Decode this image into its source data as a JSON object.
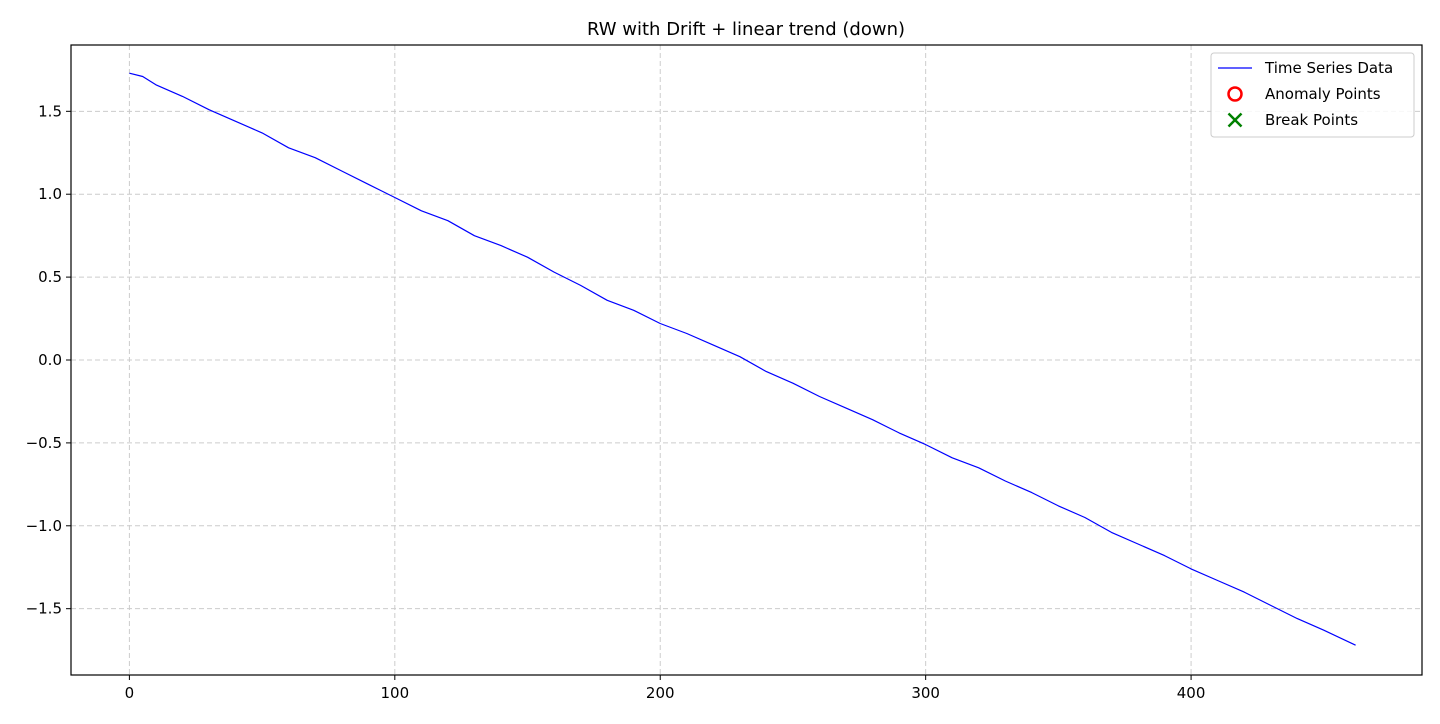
{
  "chart_data": {
    "type": "line",
    "title": "RW with Drift + linear trend (down)",
    "xlabel": "",
    "ylabel": "",
    "xlim": [
      -22,
      487
    ],
    "ylim": [
      -1.9,
      1.9
    ],
    "x_ticks": [
      0,
      100,
      200,
      300,
      400
    ],
    "y_ticks": [
      -1.5,
      -1.0,
      -0.5,
      0.0,
      0.5,
      1.0,
      1.5
    ],
    "x_tick_labels": [
      "0",
      "100",
      "200",
      "300",
      "400"
    ],
    "y_tick_labels": [
      "−1.5",
      "−1.0",
      "−0.5",
      "0.0",
      "0.5",
      "1.0",
      "1.5"
    ],
    "grid": true,
    "legend_position": "top-right",
    "legend": [
      {
        "label": "Time Series Data",
        "marker": "line",
        "color": "#0000ff"
      },
      {
        "label": "Anomaly Points",
        "marker": "open-circle",
        "color": "#ff0000"
      },
      {
        "label": "Break Points",
        "marker": "x",
        "color": "#008000"
      }
    ],
    "series": [
      {
        "name": "Time Series Data",
        "color": "#0000ff",
        "x": [
          0,
          5,
          10,
          20,
          30,
          40,
          50,
          60,
          70,
          80,
          90,
          100,
          110,
          120,
          130,
          140,
          150,
          160,
          170,
          180,
          190,
          200,
          210,
          220,
          230,
          240,
          250,
          260,
          270,
          280,
          290,
          300,
          310,
          320,
          330,
          340,
          350,
          360,
          370,
          380,
          390,
          400,
          410,
          420,
          430,
          440,
          450,
          462
        ],
        "y": [
          1.73,
          1.71,
          1.66,
          1.59,
          1.51,
          1.44,
          1.37,
          1.28,
          1.22,
          1.14,
          1.06,
          0.98,
          0.9,
          0.84,
          0.75,
          0.69,
          0.62,
          0.53,
          0.45,
          0.36,
          0.3,
          0.22,
          0.16,
          0.09,
          0.02,
          -0.07,
          -0.14,
          -0.22,
          -0.29,
          -0.36,
          -0.44,
          -0.51,
          -0.59,
          -0.65,
          -0.73,
          -0.8,
          -0.88,
          -0.95,
          -1.04,
          -1.11,
          -1.18,
          -1.26,
          -1.33,
          -1.4,
          -1.48,
          -1.56,
          -1.63,
          -1.72
        ]
      }
    ],
    "anomaly_points": [],
    "break_points": []
  }
}
